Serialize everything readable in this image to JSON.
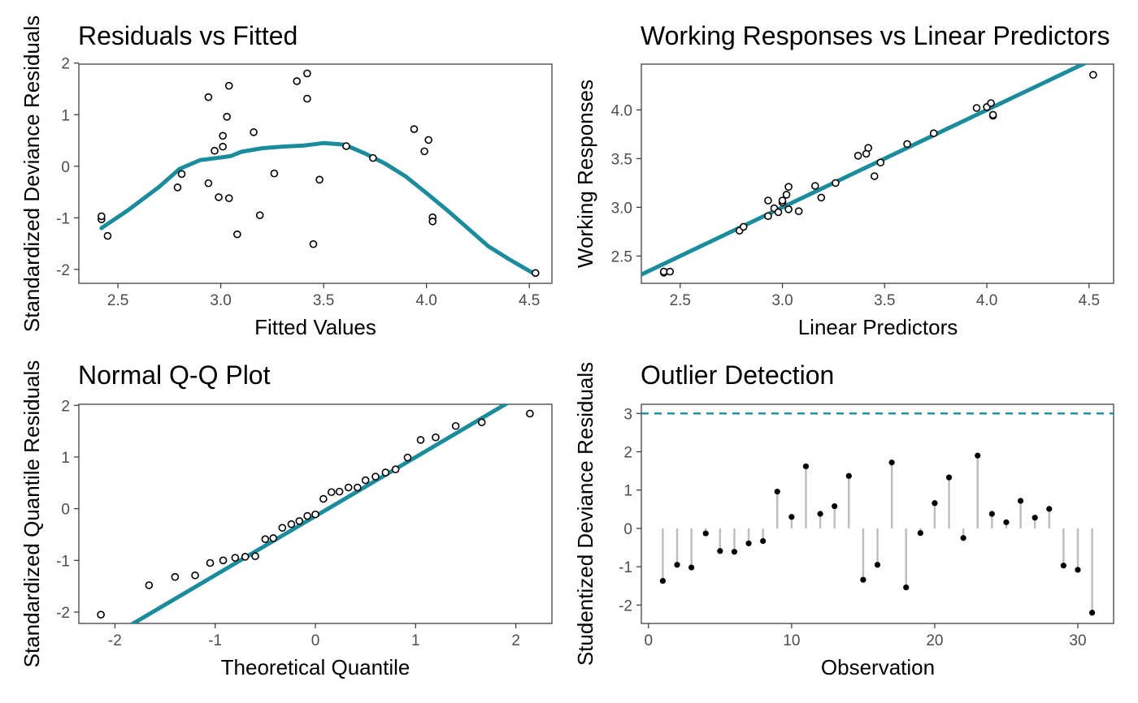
{
  "colors": {
    "accent": "#1a8c9c",
    "point": "#000000",
    "segment": "#bdbdbd",
    "border": "#333333",
    "tick_text": "#4d4d4d"
  },
  "chart_data": [
    {
      "id": "p1",
      "type": "scatter",
      "title": "Residuals vs Fitted",
      "xlabel": "Fitted Values",
      "ylabel": "Standardized Deviance Residuals",
      "xlim": [
        2.31,
        4.61
      ],
      "ylim": [
        -2.27,
        1.98
      ],
      "xticks": [
        2.5,
        3.0,
        3.5,
        4.0,
        4.5
      ],
      "xtick_labels": [
        "2.5",
        "3.0",
        "3.5",
        "4.0",
        "4.5"
      ],
      "yticks": [
        -2,
        -1,
        0,
        1,
        2
      ],
      "ytick_labels": [
        "-2",
        "-1",
        "0",
        "1",
        "2"
      ],
      "points": [
        [
          2.42,
          -1.03
        ],
        [
          2.42,
          -0.97
        ],
        [
          2.45,
          -1.35
        ],
        [
          2.79,
          -0.41
        ],
        [
          2.81,
          -0.15
        ],
        [
          2.94,
          1.34
        ],
        [
          2.94,
          -0.33
        ],
        [
          2.97,
          0.3
        ],
        [
          2.99,
          -0.6
        ],
        [
          3.01,
          0.38
        ],
        [
          3.01,
          0.59
        ],
        [
          3.03,
          0.96
        ],
        [
          3.04,
          1.56
        ],
        [
          3.04,
          -0.62
        ],
        [
          3.08,
          -1.32
        ],
        [
          3.16,
          0.66
        ],
        [
          3.19,
          -0.95
        ],
        [
          3.26,
          -0.14
        ],
        [
          3.37,
          1.65
        ],
        [
          3.42,
          1.8
        ],
        [
          3.42,
          1.31
        ],
        [
          3.45,
          -1.51
        ],
        [
          3.48,
          -0.26
        ],
        [
          3.61,
          0.39
        ],
        [
          3.74,
          0.16
        ],
        [
          3.94,
          0.72
        ],
        [
          3.99,
          0.29
        ],
        [
          4.01,
          0.51
        ],
        [
          4.03,
          -0.99
        ],
        [
          4.03,
          -1.07
        ],
        [
          4.53,
          -2.07
        ]
      ],
      "smooth": [
        [
          2.42,
          -1.2
        ],
        [
          2.55,
          -0.85
        ],
        [
          2.7,
          -0.4
        ],
        [
          2.8,
          -0.05
        ],
        [
          2.9,
          0.12
        ],
        [
          3.0,
          0.17
        ],
        [
          3.05,
          0.2
        ],
        [
          3.1,
          0.28
        ],
        [
          3.2,
          0.35
        ],
        [
          3.3,
          0.38
        ],
        [
          3.4,
          0.4
        ],
        [
          3.5,
          0.45
        ],
        [
          3.6,
          0.42
        ],
        [
          3.7,
          0.25
        ],
        [
          3.8,
          0.05
        ],
        [
          3.9,
          -0.2
        ],
        [
          4.0,
          -0.52
        ],
        [
          4.1,
          -0.85
        ],
        [
          4.2,
          -1.2
        ],
        [
          4.3,
          -1.55
        ],
        [
          4.4,
          -1.8
        ],
        [
          4.53,
          -2.1
        ]
      ]
    },
    {
      "id": "p2",
      "type": "scatter",
      "title": "Working Responses vs Linear Predictors",
      "xlabel": "Linear Predictors",
      "ylabel": "Working Responses",
      "xlim": [
        2.31,
        4.62
      ],
      "ylim": [
        2.22,
        4.47
      ],
      "xticks": [
        2.5,
        3.0,
        3.5,
        4.0,
        4.5
      ],
      "xtick_labels": [
        "2.5",
        "3.0",
        "3.5",
        "4.0",
        "4.5"
      ],
      "yticks": [
        2.5,
        3.0,
        3.5,
        4.0
      ],
      "ytick_labels": [
        "2.5",
        "3.0",
        "3.5",
        "4.0"
      ],
      "points": [
        [
          2.42,
          2.33
        ],
        [
          2.42,
          2.34
        ],
        [
          2.45,
          2.34
        ],
        [
          2.79,
          2.76
        ],
        [
          2.81,
          2.8
        ],
        [
          2.93,
          3.07
        ],
        [
          2.93,
          2.91
        ],
        [
          2.96,
          2.99
        ],
        [
          2.98,
          2.95
        ],
        [
          3.0,
          3.05
        ],
        [
          3.0,
          3.07
        ],
        [
          3.02,
          3.13
        ],
        [
          3.03,
          3.21
        ],
        [
          3.03,
          2.98
        ],
        [
          3.08,
          2.96
        ],
        [
          3.16,
          3.22
        ],
        [
          3.19,
          3.1
        ],
        [
          3.26,
          3.25
        ],
        [
          3.37,
          3.53
        ],
        [
          3.41,
          3.55
        ],
        [
          3.42,
          3.61
        ],
        [
          3.45,
          3.32
        ],
        [
          3.48,
          3.46
        ],
        [
          3.61,
          3.65
        ],
        [
          3.74,
          3.76
        ],
        [
          3.95,
          4.02
        ],
        [
          4.0,
          4.03
        ],
        [
          4.02,
          4.07
        ],
        [
          4.03,
          3.94
        ],
        [
          4.03,
          3.95
        ],
        [
          4.52,
          4.36
        ]
      ],
      "line": [
        [
          2.31,
          2.31
        ],
        [
          4.62,
          4.62
        ]
      ]
    },
    {
      "id": "p3",
      "type": "scatter",
      "title": "Normal Q-Q Plot",
      "xlabel": "Theoretical Quantile",
      "ylabel": "Standardized Quantile Residuals",
      "xlim": [
        -2.36,
        2.36
      ],
      "ylim": [
        -2.22,
        2.02
      ],
      "xticks": [
        -2,
        -1,
        0,
        1,
        2
      ],
      "xtick_labels": [
        "-2",
        "-1",
        "0",
        "1",
        "2"
      ],
      "yticks": [
        -2,
        -1,
        0,
        1,
        2
      ],
      "ytick_labels": [
        "-2",
        "-1",
        "0",
        "1",
        "2"
      ],
      "points": [
        [
          -2.14,
          -2.05
        ],
        [
          -1.66,
          -1.48
        ],
        [
          -1.4,
          -1.32
        ],
        [
          -1.2,
          -1.29
        ],
        [
          -1.05,
          -1.05
        ],
        [
          -0.92,
          -1.0
        ],
        [
          -0.8,
          -0.95
        ],
        [
          -0.7,
          -0.93
        ],
        [
          -0.6,
          -0.92
        ],
        [
          -0.5,
          -0.59
        ],
        [
          -0.42,
          -0.57
        ],
        [
          -0.33,
          -0.37
        ],
        [
          -0.24,
          -0.3
        ],
        [
          -0.16,
          -0.24
        ],
        [
          -0.08,
          -0.14
        ],
        [
          0.0,
          -0.11
        ],
        [
          0.08,
          0.19
        ],
        [
          0.16,
          0.32
        ],
        [
          0.24,
          0.33
        ],
        [
          0.33,
          0.41
        ],
        [
          0.42,
          0.41
        ],
        [
          0.5,
          0.55
        ],
        [
          0.6,
          0.62
        ],
        [
          0.7,
          0.7
        ],
        [
          0.8,
          0.76
        ],
        [
          0.92,
          0.99
        ],
        [
          1.05,
          1.33
        ],
        [
          1.2,
          1.38
        ],
        [
          1.4,
          1.6
        ],
        [
          1.66,
          1.67
        ],
        [
          2.14,
          1.84
        ]
      ],
      "line": [
        [
          -2.36,
          -2.84
        ],
        [
          2.36,
          2.55
        ]
      ]
    },
    {
      "id": "p4",
      "type": "scatter",
      "title": "Outlier Detection",
      "xlabel": "Observation",
      "ylabel": "Studentized Deviance Residuals",
      "xlim": [
        -0.5,
        32.5
      ],
      "ylim": [
        -2.48,
        3.24
      ],
      "xticks": [
        0,
        10,
        20,
        30
      ],
      "xtick_labels": [
        "0",
        "10",
        "20",
        "30"
      ],
      "yticks": [
        -2,
        -1,
        0,
        1,
        2,
        3
      ],
      "ytick_labels": [
        "-2",
        "-1",
        "0",
        "1",
        "2",
        "3"
      ],
      "threshold": 3,
      "values": [
        -1.37,
        -0.95,
        -1.02,
        -0.13,
        -0.59,
        -0.61,
        -0.39,
        -0.33,
        0.96,
        0.3,
        1.62,
        0.38,
        0.58,
        1.37,
        -1.34,
        -0.95,
        1.72,
        -1.54,
        -0.12,
        0.66,
        1.33,
        -0.25,
        1.9,
        0.38,
        0.16,
        0.72,
        0.28,
        0.51,
        -0.97,
        -1.08,
        -2.2
      ]
    }
  ]
}
